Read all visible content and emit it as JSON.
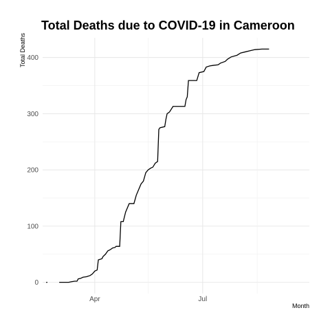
{
  "chart_data": {
    "type": "line",
    "title": "Total Deaths due to COVID-19 in Cameroon",
    "xlabel": "Month",
    "ylabel": "Total Deaths",
    "x_tick_labels": [
      "Apr",
      "Jul"
    ],
    "y_ticks": [
      0,
      100,
      200,
      300,
      400
    ],
    "xlim": [
      "2020-02-17",
      "2020-09-29"
    ],
    "ylim": [
      -20,
      435
    ],
    "grid": true,
    "legend": "none",
    "series": [
      {
        "color": "#000000",
        "points": [
          [
            "2020-02-20",
            0
          ],
          [
            "2020-02-21",
            0
          ],
          [
            "2020-03-02",
            0
          ],
          [
            "2020-03-05",
            0
          ],
          [
            "2020-03-10",
            0
          ],
          [
            "2020-03-12",
            1
          ],
          [
            "2020-03-15",
            2
          ],
          [
            "2020-03-17",
            2
          ],
          [
            "2020-03-18",
            6
          ],
          [
            "2020-03-20",
            7
          ],
          [
            "2020-03-22",
            9
          ],
          [
            "2020-03-25",
            10
          ],
          [
            "2020-03-28",
            12
          ],
          [
            "2020-03-30",
            15
          ],
          [
            "2020-04-01",
            20
          ],
          [
            "2020-04-03",
            22
          ],
          [
            "2020-04-04",
            40
          ],
          [
            "2020-04-07",
            42
          ],
          [
            "2020-04-08",
            46
          ],
          [
            "2020-04-10",
            50
          ],
          [
            "2020-04-12",
            56
          ],
          [
            "2020-04-14",
            58
          ],
          [
            "2020-04-16",
            61
          ],
          [
            "2020-04-18",
            62
          ],
          [
            "2020-04-19",
            64
          ],
          [
            "2020-04-22",
            64
          ],
          [
            "2020-04-23",
            108
          ],
          [
            "2020-04-25",
            108
          ],
          [
            "2020-04-27",
            125
          ],
          [
            "2020-04-28",
            130
          ],
          [
            "2020-04-30",
            140
          ],
          [
            "2020-05-04",
            140
          ],
          [
            "2020-05-06",
            155
          ],
          [
            "2020-05-08",
            165
          ],
          [
            "2020-05-10",
            175
          ],
          [
            "2020-05-12",
            180
          ],
          [
            "2020-05-14",
            195
          ],
          [
            "2020-05-16",
            200
          ],
          [
            "2020-05-18",
            203
          ],
          [
            "2020-05-20",
            205
          ],
          [
            "2020-05-22",
            212
          ],
          [
            "2020-05-24",
            215
          ],
          [
            "2020-05-25",
            272
          ],
          [
            "2020-05-26",
            275
          ],
          [
            "2020-05-30",
            277
          ],
          [
            "2020-05-31",
            290
          ],
          [
            "2020-06-01",
            300
          ],
          [
            "2020-06-03",
            303
          ],
          [
            "2020-06-06",
            313
          ],
          [
            "2020-06-10",
            313
          ],
          [
            "2020-06-16",
            313
          ],
          [
            "2020-06-17",
            325
          ],
          [
            "2020-06-18",
            330
          ],
          [
            "2020-06-19",
            359
          ],
          [
            "2020-06-26",
            359
          ],
          [
            "2020-06-28",
            373
          ],
          [
            "2020-07-02",
            375
          ],
          [
            "2020-07-04",
            383
          ],
          [
            "2020-07-07",
            385
          ],
          [
            "2020-07-10",
            386
          ],
          [
            "2020-07-14",
            387
          ],
          [
            "2020-07-16",
            390
          ],
          [
            "2020-07-20",
            393
          ],
          [
            "2020-07-22",
            397
          ],
          [
            "2020-07-25",
            401
          ],
          [
            "2020-07-30",
            404
          ],
          [
            "2020-08-02",
            408
          ],
          [
            "2020-08-06",
            410
          ],
          [
            "2020-08-10",
            412
          ],
          [
            "2020-08-14",
            414
          ],
          [
            "2020-08-20",
            415
          ],
          [
            "2020-08-26",
            415
          ]
        ]
      }
    ]
  }
}
